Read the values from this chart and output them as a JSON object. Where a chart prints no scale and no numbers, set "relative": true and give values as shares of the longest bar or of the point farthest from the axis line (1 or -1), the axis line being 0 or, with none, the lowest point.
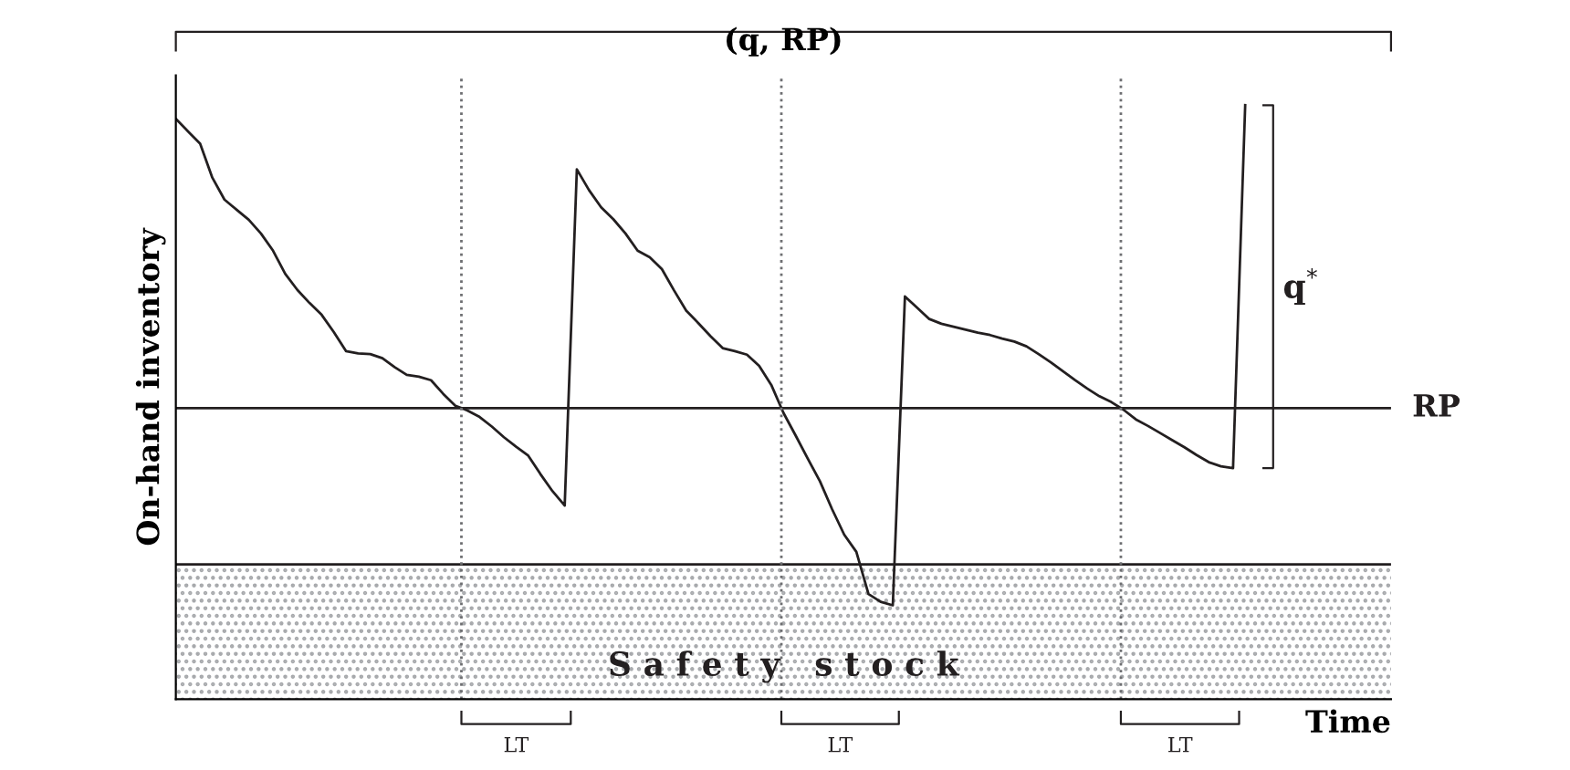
{
  "chart_data": {
    "type": "line",
    "title": "(q, RP)",
    "xlabel": "Time",
    "ylabel": "On-hand inventory",
    "relative": true,
    "marker": "none",
    "line_style": "solid",
    "categories": [
      null,
      null,
      null,
      null,
      null,
      null,
      null,
      null,
      null,
      null,
      null,
      null,
      null,
      null,
      null,
      null,
      null,
      null,
      null,
      null,
      null,
      null,
      null,
      null,
      null,
      null,
      null,
      null,
      null,
      null,
      null,
      null,
      null,
      null,
      null,
      null,
      null,
      null,
      null,
      null,
      null,
      null,
      null,
      null,
      null,
      null,
      null,
      null,
      null,
      null,
      null,
      null,
      null,
      null,
      null,
      null,
      null,
      null,
      null,
      null,
      null,
      null,
      null,
      null,
      null,
      null,
      null,
      null,
      null,
      null,
      null,
      null,
      null,
      null,
      null,
      null,
      null,
      null,
      null,
      null,
      null,
      null,
      null,
      null,
      null,
      null,
      null,
      null,
      null,
      null,
      null,
      null,
      null,
      null,
      null,
      null,
      null,
      null,
      null,
      null,
      null
    ],
    "series": [
      {
        "color": "#231f20",
        "values": [
          0.977,
          0.956,
          0.935,
          0.878,
          0.841,
          0.824,
          0.807,
          0.784,
          0.755,
          0.716,
          0.689,
          0.667,
          0.647,
          0.618,
          0.586,
          0.582,
          0.581,
          0.574,
          0.559,
          0.546,
          0.543,
          0.537,
          0.514,
          0.494,
          0.486,
          0.475,
          0.459,
          0.441,
          0.425,
          0.41,
          0.379,
          0.35,
          0.326,
          0.892,
          0.857,
          0.828,
          0.808,
          0.784,
          0.755,
          0.744,
          0.724,
          0.688,
          0.654,
          0.633,
          0.611,
          0.591,
          0.586,
          0.58,
          0.561,
          0.529,
          0.482,
          0.444,
          0.405,
          0.367,
          0.32,
          0.277,
          0.248,
          0.177,
          0.164,
          0.158,
          0.678,
          0.659,
          0.64,
          0.632,
          0.627,
          0.622,
          0.617,
          0.613,
          0.607,
          0.602,
          0.594,
          0.581,
          0.567,
          0.552,
          0.537,
          0.523,
          0.51,
          0.5,
          0.487,
          0.471,
          0.46,
          0.448,
          0.436,
          0.424,
          0.411,
          0.399,
          0.392,
          0.389,
          1.0,
          null,
          null,
          null,
          null,
          null,
          null,
          null,
          null,
          null,
          null,
          null,
          null
        ]
      }
    ],
    "ref_lines": [
      {
        "axis": "y",
        "value": 0.49,
        "label": "RP",
        "color": "#231f20",
        "line_style": "solid"
      },
      {
        "axis": "y",
        "value": 0.227,
        "color": "#231f20",
        "line_style": "solid"
      }
    ],
    "bands": [
      {
        "axis": "y",
        "from": 0,
        "to": 0.227,
        "label": "S a f e t y   s t o c k",
        "color": "#a7a9ac"
      }
    ],
    "annotations": [
      "LT",
      "LT",
      "LT",
      "q$^{*}$"
    ]
  }
}
